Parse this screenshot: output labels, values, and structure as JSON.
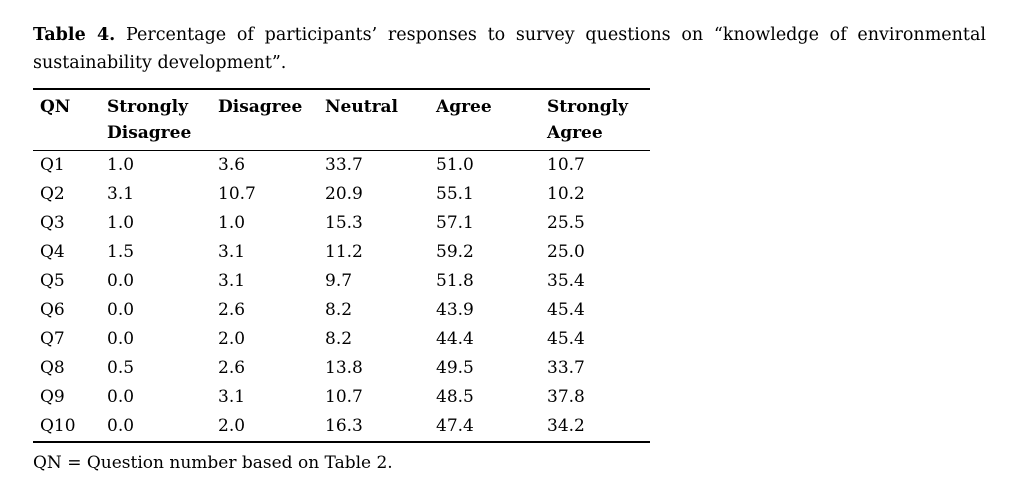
{
  "caption": {
    "label": "Table 4.",
    "text": "Percentage of participants’ responses to survey questions on “knowledge of environmental sustainability development”."
  },
  "table": {
    "columns": [
      "QN",
      "Strongly Disagree",
      "Disagree",
      "Neutral",
      "Agree",
      "Strongly Agree"
    ],
    "rows": [
      [
        "Q1",
        "1.0",
        "3.6",
        "33.7",
        "51.0",
        "10.7"
      ],
      [
        "Q2",
        "3.1",
        "10.7",
        "20.9",
        "55.1",
        "10.2"
      ],
      [
        "Q3",
        "1.0",
        "1.0",
        "15.3",
        "57.1",
        "25.5"
      ],
      [
        "Q4",
        "1.5",
        "3.1",
        "11.2",
        "59.2",
        "25.0"
      ],
      [
        "Q5",
        "0.0",
        "3.1",
        "9.7",
        "51.8",
        "35.4"
      ],
      [
        "Q6",
        "0.0",
        "2.6",
        "8.2",
        "43.9",
        "45.4"
      ],
      [
        "Q7",
        "0.0",
        "2.0",
        "8.2",
        "44.4",
        "45.4"
      ],
      [
        "Q8",
        "0.5",
        "2.6",
        "13.8",
        "49.5",
        "33.7"
      ],
      [
        "Q9",
        "0.0",
        "3.1",
        "10.7",
        "48.5",
        "37.8"
      ],
      [
        "Q10",
        "0.0",
        "2.0",
        "16.3",
        "47.4",
        "34.2"
      ]
    ]
  },
  "footnote": "QN = Question number based on Table 2.",
  "colors": {
    "text": "#000000",
    "background": "#ffffff",
    "rule": "#000000"
  }
}
